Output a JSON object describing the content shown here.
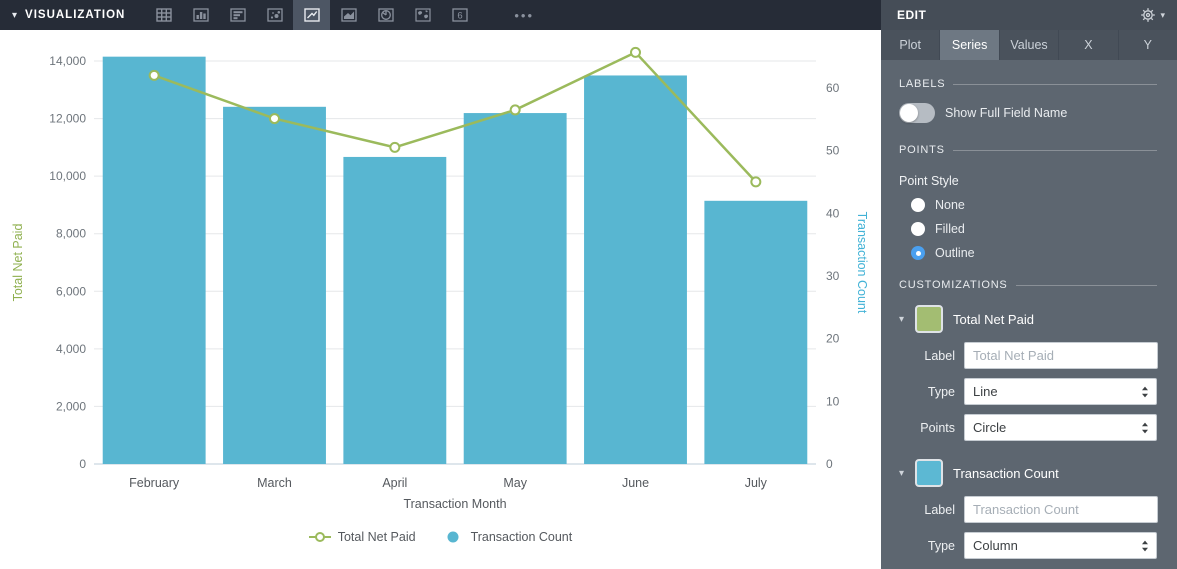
{
  "toolbar": {
    "title": "VISUALIZATION",
    "collapse_caret": "▾",
    "more_label": "•••",
    "single_value_glyph": "6",
    "icons": [
      "table-icon",
      "column-chart-icon",
      "horizontal-bar-chart-icon",
      "scatter-plot-icon",
      "line-chart-icon",
      "area-chart-icon",
      "pie-chart-icon",
      "map-icon",
      "single-value-icon",
      "more-icon"
    ],
    "selected_icon": "line-chart-icon"
  },
  "panel": {
    "title": "EDIT",
    "gear_caret": "▾",
    "tabs": [
      {
        "label": "Plot",
        "active": false
      },
      {
        "label": "Series",
        "active": true
      },
      {
        "label": "Values",
        "active": false
      },
      {
        "label": "X",
        "active": false
      },
      {
        "label": "Y",
        "active": false
      }
    ],
    "labels_section": {
      "heading": "LABELS",
      "toggle_label": "Show Full Field Name",
      "toggle_on": false
    },
    "points_section": {
      "heading": "POINTS",
      "group_label": "Point Style",
      "options": [
        {
          "label": "None",
          "selected": false
        },
        {
          "label": "Filled",
          "selected": false
        },
        {
          "label": "Outline",
          "selected": true
        }
      ]
    },
    "customizations": {
      "heading": "CUSTOMIZATIONS",
      "series": [
        {
          "name": "Total Net Paid",
          "swatch_color": "#a3bd72",
          "label_field": {
            "label": "Label",
            "value": "",
            "placeholder": "Total Net Paid"
          },
          "type_field": {
            "label": "Type",
            "value": "Line"
          },
          "points_field": {
            "label": "Points",
            "value": "Circle"
          }
        },
        {
          "name": "Transaction Count",
          "swatch_color": "#5cb8d3",
          "label_field": {
            "label": "Label",
            "value": "",
            "placeholder": "Transaction Count"
          },
          "type_field": {
            "label": "Type",
            "value": "Column"
          }
        }
      ]
    }
  },
  "chart_data": {
    "type": "combo",
    "categories": [
      "February",
      "March",
      "April",
      "May",
      "June",
      "July"
    ],
    "series": [
      {
        "name": "Total Net Paid",
        "type": "line",
        "axis": "left",
        "color": "#9bba5c",
        "point_style": "outline",
        "values": [
          13500,
          12000,
          11000,
          12300,
          14300,
          9800
        ]
      },
      {
        "name": "Transaction Count",
        "type": "column",
        "axis": "right",
        "color": "#58b6d1",
        "values": [
          65,
          57,
          49,
          56,
          62,
          42
        ]
      }
    ],
    "xlabel": "Transaction Month",
    "left_axis": {
      "label": "Total Net Paid",
      "color": "#8fb04f",
      "min": 0,
      "max": 14000,
      "step": 2000
    },
    "right_axis": {
      "label": "Transaction Count",
      "color": "#41b2d6",
      "min": 0,
      "max": 60,
      "step": 10
    },
    "grid": true,
    "legend_position": "bottom",
    "colors": {
      "gridline": "#e5e7e9",
      "axis_line": "#c9d8e1",
      "tick_text": "#6e757c",
      "label_text": "#55595e"
    }
  }
}
